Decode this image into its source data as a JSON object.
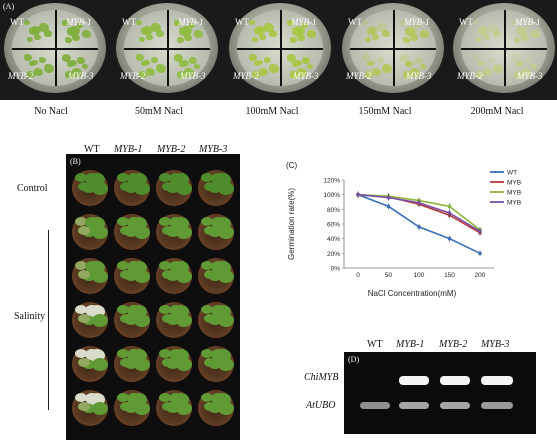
{
  "panel_a": {
    "label": "(A)",
    "conditions": [
      "No Nacl",
      "50mM Nacl",
      "100mM Nacl",
      "150mM Nacl",
      "200mM Nacl"
    ],
    "quadrants": [
      "WT",
      "MYB-1",
      "MYB-2",
      "MYB-3"
    ]
  },
  "panel_b": {
    "label": "(B)",
    "columns": [
      "WT",
      "MYB-1",
      "MYB-2",
      "MYB-3"
    ],
    "row_labels": {
      "control": "Control",
      "salinity": "Salinity"
    }
  },
  "panel_c": {
    "label": "(C)",
    "chart_data": {
      "type": "line",
      "x": [
        0,
        50,
        100,
        150,
        200
      ],
      "xlabel": "NaCl Concentration(mM)",
      "ylabel": "Germination rate(%)",
      "ylim": [
        0,
        120
      ],
      "yticks": [
        "0%",
        "20%",
        "40%",
        "60%",
        "80%",
        "100%",
        "120%"
      ],
      "xticks": [
        "0",
        "50",
        "100",
        "150",
        "200"
      ],
      "legend_position": "top-right",
      "series": [
        {
          "name": "WT",
          "color": "#3b6fb6",
          "values": [
            100,
            84,
            56,
            40,
            20
          ]
        },
        {
          "name": "MYB-1",
          "color": "#b83a3a",
          "values": [
            100,
            97,
            87,
            72,
            48
          ]
        },
        {
          "name": "MYB-2",
          "color": "#8db63a",
          "values": [
            100,
            98,
            92,
            84,
            52
          ]
        },
        {
          "name": "MYB-3",
          "color": "#7a4fa8",
          "values": [
            100,
            96,
            89,
            75,
            50
          ]
        }
      ]
    }
  },
  "panel_d": {
    "label": "(D)",
    "lanes": [
      "WT",
      "MYB-1",
      "MYB-2",
      "MYB-3"
    ],
    "rows": [
      "ChiMYB",
      "AtUBO"
    ]
  }
}
